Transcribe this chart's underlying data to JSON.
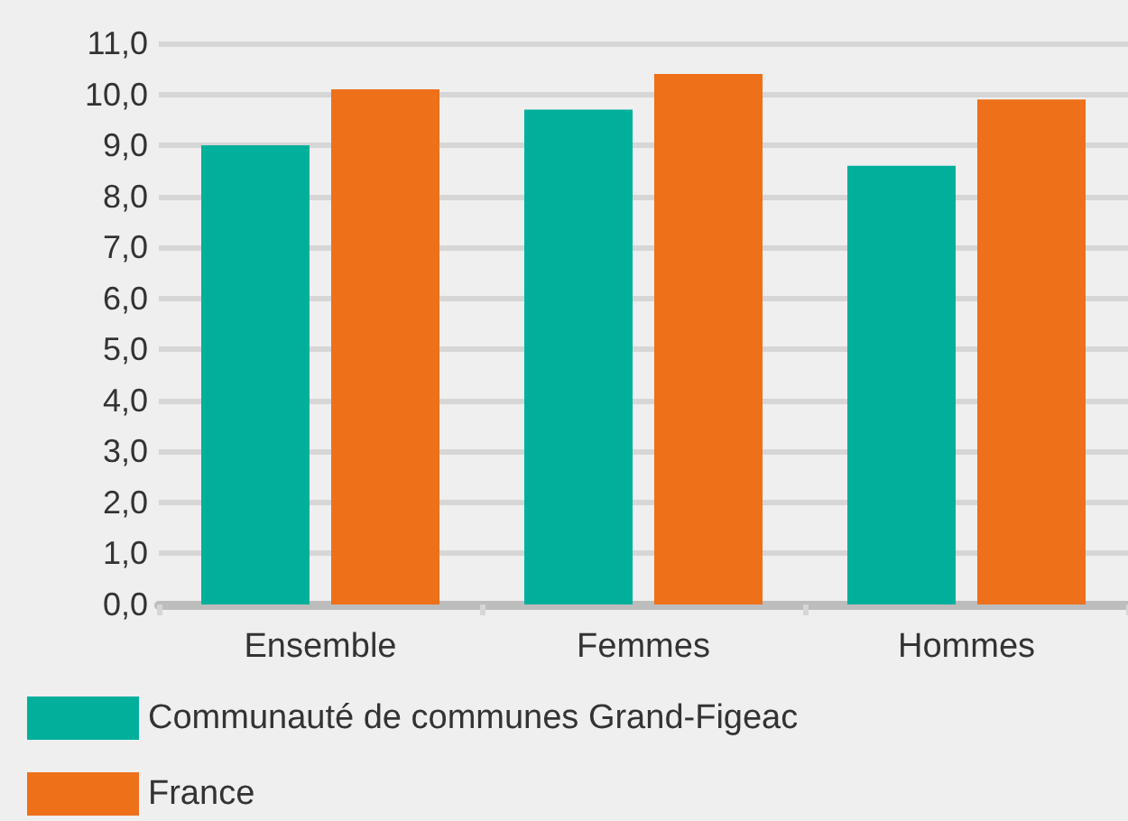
{
  "chart_data": {
    "type": "bar",
    "categories": [
      "Ensemble",
      "Femmes",
      "Hommes"
    ],
    "series": [
      {
        "name": "Communauté de communes Grand-Figeac",
        "color": "#00b09b",
        "values": [
          9.0,
          9.7,
          8.6
        ]
      },
      {
        "name": "France",
        "color": "#ee7018",
        "values": [
          10.1,
          10.4,
          9.9
        ]
      }
    ],
    "ylim": [
      0,
      11
    ],
    "yticks": [
      {
        "value": 0,
        "label": "0,0"
      },
      {
        "value": 1,
        "label": "1,0"
      },
      {
        "value": 2,
        "label": "2,0"
      },
      {
        "value": 3,
        "label": "3,0"
      },
      {
        "value": 4,
        "label": "4,0"
      },
      {
        "value": 5,
        "label": "5,0"
      },
      {
        "value": 6,
        "label": "6,0"
      },
      {
        "value": 7,
        "label": "7,0"
      },
      {
        "value": 8,
        "label": "8,0"
      },
      {
        "value": 9,
        "label": "9,0"
      },
      {
        "value": 10,
        "label": "10,0"
      },
      {
        "value": 11,
        "label": "11,0"
      }
    ],
    "grid": "y",
    "legend": "bottom"
  }
}
